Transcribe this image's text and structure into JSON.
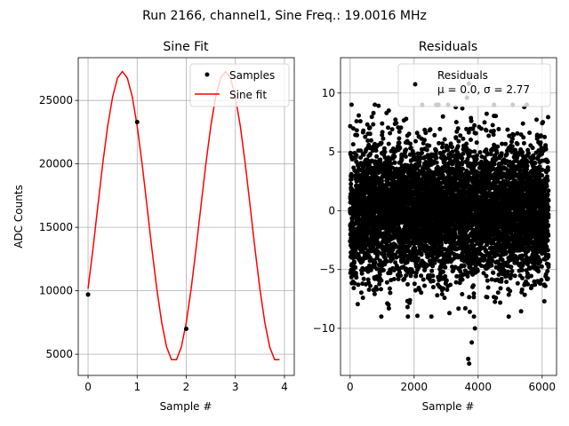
{
  "figure": {
    "suptitle": "Run 2166, channel1, Sine Freq.: 19.0016 MHz"
  },
  "chart_data": [
    {
      "type": "line",
      "title": "Sine Fit",
      "xlabel": "Sample #",
      "ylabel": "ADC Counts",
      "xlim": [
        -0.2,
        4.2
      ],
      "ylim": [
        3330,
        28370
      ],
      "xticks": [
        0,
        1,
        2,
        3,
        4
      ],
      "yticks": [
        5000,
        10000,
        15000,
        20000,
        25000
      ],
      "grid": true,
      "legend": {
        "placement": "upper-right",
        "entries": [
          "Samples",
          "Sine fit"
        ]
      },
      "samples": {
        "name": "Samples",
        "color": "#000000",
        "x": [
          0,
          1,
          2
        ],
        "y": [
          9700,
          23300,
          7000
        ]
      },
      "fit": {
        "name": "Sine fit",
        "color": "#ff0000",
        "amplitude": 11420,
        "offset": 15860,
        "period_samples": 2.1,
        "peak_at": 0.7,
        "x_range": [
          0,
          3.9
        ]
      }
    },
    {
      "type": "scatter",
      "title": "Residuals",
      "xlabel": "Sample #",
      "ylabel": "",
      "xlim": [
        -300,
        6450
      ],
      "ylim": [
        -14,
        13
      ],
      "xticks": [
        0,
        2000,
        4000,
        6000
      ],
      "yticks": [
        -10,
        -5,
        0,
        5,
        10
      ],
      "grid": true,
      "legend": {
        "placement": "upper-right",
        "entries": [
          "Residuals",
          "μ = 0.0, σ = 2.77"
        ]
      },
      "residuals": {
        "name": "Residuals",
        "color": "#000000",
        "count": 6250,
        "mean": 0.0,
        "std": 2.77,
        "outliers": [
          {
            "x": 3720,
            "y": -13.0
          },
          {
            "x": 3690,
            "y": -12.6
          },
          {
            "x": 3760,
            "y": 11.5
          },
          {
            "x": 3710,
            "y": 10.8
          },
          {
            "x": 3800,
            "y": -11.2
          },
          {
            "x": 3650,
            "y": 9.6
          },
          {
            "x": 3900,
            "y": -10.0
          },
          {
            "x": 3870,
            "y": -9.0
          },
          {
            "x": 3740,
            "y": -8.6
          },
          {
            "x": 1200,
            "y": -8.0
          },
          {
            "x": 3600,
            "y": -8.3
          },
          {
            "x": 400,
            "y": -7.4
          },
          {
            "x": 200,
            "y": 7.6
          },
          {
            "x": 3300,
            "y": 8.8
          },
          {
            "x": 2900,
            "y": 8.0
          },
          {
            "x": 4200,
            "y": 7.5
          },
          {
            "x": 5400,
            "y": 7.4
          },
          {
            "x": 1750,
            "y": 7.8
          },
          {
            "x": 6100,
            "y": -6.4
          },
          {
            "x": 5900,
            "y": -6.1
          },
          {
            "x": 2600,
            "y": -6.5
          },
          {
            "x": 4700,
            "y": -6.6
          },
          {
            "x": 600,
            "y": 7.0
          },
          {
            "x": 3500,
            "y": -7.1
          }
        ]
      }
    }
  ]
}
